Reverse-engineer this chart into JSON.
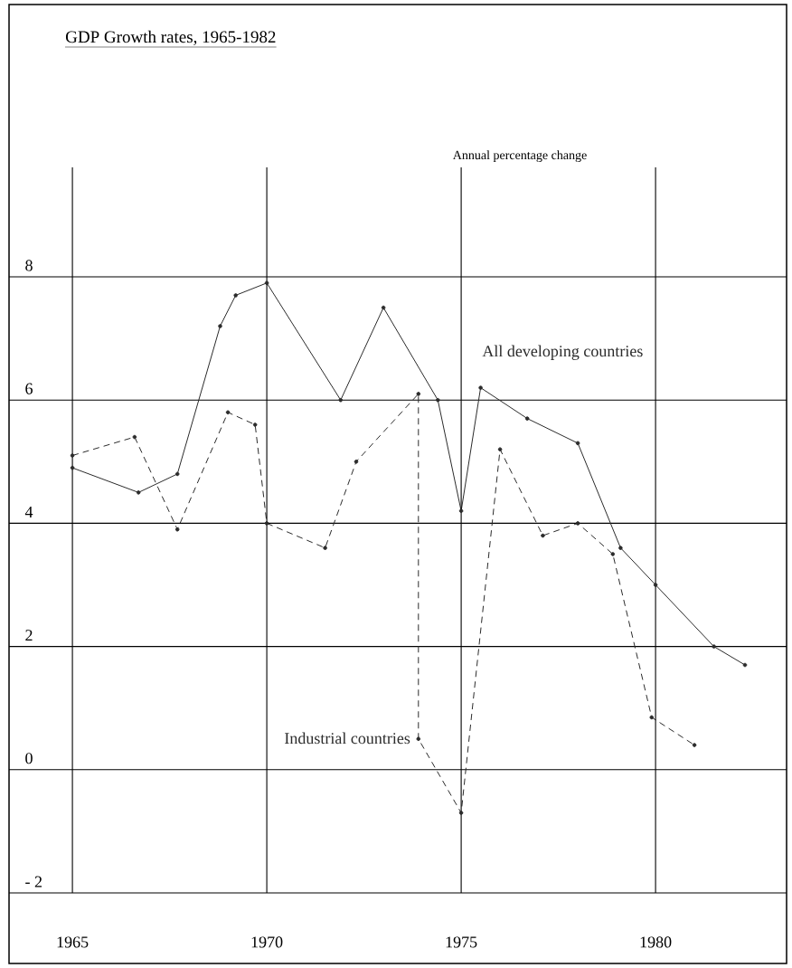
{
  "chart_data": {
    "type": "line",
    "title": "GDP Growth rates, 1965-1982",
    "ylabel": "Annual percentage change",
    "xlim": [
      1963.37,
      1983.37
    ],
    "ylim": [
      -3.145,
      12.42
    ],
    "xticks": [
      1965,
      1970,
      1975,
      1980
    ],
    "yticks": [
      {
        "value": -2,
        "label": "- 2"
      },
      0,
      2,
      4,
      6,
      8
    ],
    "grid": true,
    "marker": "circle",
    "series": [
      {
        "name": "All developing countries",
        "color": "#2b2b2b",
        "line_style": "solid",
        "x": [
          1965.0,
          1966.7,
          1967.7,
          1968.8,
          1969.2,
          1970.0,
          1971.9,
          1973.0,
          1974.4,
          1975.0,
          1975.5,
          1976.7,
          1978.0,
          1979.1,
          1980.0,
          1981.5,
          1982.3
        ],
        "values": [
          4.9,
          4.5,
          4.8,
          7.2,
          7.7,
          7.9,
          6.0,
          7.5,
          6.0,
          4.2,
          6.2,
          5.7,
          5.3,
          3.6,
          3.0,
          2.0,
          1.7
        ]
      },
      {
        "name": "Industrial countries",
        "color": "#2b2b2b",
        "line_style": "dashed",
        "x": [
          1965.0,
          1966.6,
          1967.7,
          1969.0,
          1969.7,
          1970.0,
          1971.5,
          1972.3,
          1973.9,
          1973.9,
          1975.0,
          1976.0,
          1977.1,
          1978.0,
          1978.9,
          1979.9,
          1981.0
        ],
        "values": [
          5.1,
          5.4,
          3.9,
          5.8,
          5.6,
          4.0,
          3.6,
          5.0,
          6.1,
          0.5,
          -0.7,
          5.2,
          3.8,
          4.0,
          3.5,
          0.85,
          0.4
        ]
      }
    ]
  }
}
